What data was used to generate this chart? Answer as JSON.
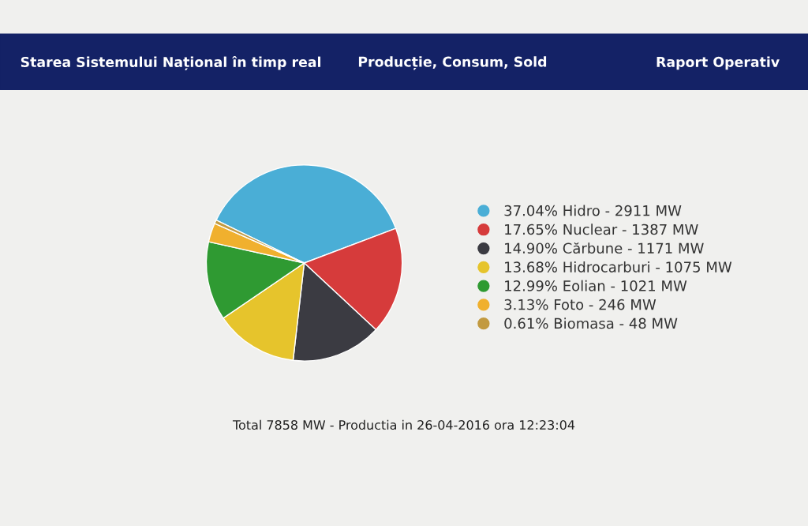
{
  "chart_data": {
    "type": "pie",
    "title": "Total 7858 MW - Productia in 26-04-2016 ora 12:23:04",
    "annotations": [
      "Starea Sistemului Național în timp real",
      "Producție, Consum, Sold",
      "Raport Operativ"
    ],
    "categories": [
      "37.04% Hidro - 2911 MW",
      "17.65% Nuclear - 1387 MW",
      "14.90% Cărbune - 1171 MW",
      "13.68% Hidrocarburi - 1075 MW",
      "12.99% Eolian - 1021 MW",
      "3.13% Foto - 246 MW",
      "0.61% Biomasa - 48 MW"
    ],
    "values": [
      37.04,
      17.65,
      14.9,
      13.68,
      12.99,
      3.13,
      0.61
    ],
    "colors": [
      "#4aaed6",
      "#d63b3b",
      "#3b3b42",
      "#e6c42c",
      "#2f9a32",
      "#f0b02e",
      "#c29a40"
    ],
    "legend": "right"
  }
}
